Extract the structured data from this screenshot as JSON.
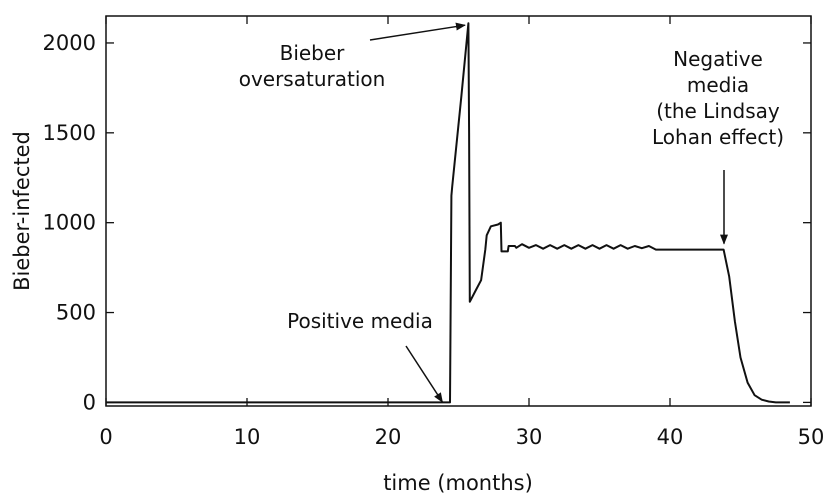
{
  "chart_data": {
    "type": "line",
    "title": "",
    "xlabel": "time (months)",
    "ylabel": "Bieber-infected",
    "xlim": [
      0,
      50
    ],
    "ylim": [
      -20,
      2150
    ],
    "xticks": [
      0,
      10,
      20,
      30,
      40,
      50
    ],
    "yticks": [
      0,
      500,
      1000,
      1500,
      2000
    ],
    "grid": false,
    "legend": "none",
    "line_color": "#111111",
    "series": [
      {
        "x": [
          0,
          23.8,
          24.4,
          24.5,
          24.55,
          25.2,
          25.7,
          25.75,
          25.8,
          26.2,
          26.6,
          26.9,
          27.0,
          27.3,
          27.8,
          28.0,
          28.05,
          28.5,
          28.55,
          29.0,
          29.1,
          29.5,
          30.0,
          30.5,
          31.0,
          31.5,
          32.0,
          32.5,
          33.0,
          33.5,
          34.0,
          34.5,
          35.0,
          35.5,
          36.0,
          36.5,
          37.0,
          37.5,
          38.0,
          38.5,
          39.0,
          40.0,
          41.0,
          42.0,
          43.0,
          43.8,
          44.2,
          44.6,
          45.0,
          45.5,
          46.0,
          46.5,
          47.0,
          47.5,
          48.0,
          48.5
        ],
        "y": [
          0,
          0,
          0,
          1150,
          1200,
          1700,
          2110,
          1500,
          560,
          620,
          680,
          850,
          930,
          980,
          990,
          1000,
          840,
          840,
          870,
          870,
          860,
          880,
          860,
          875,
          855,
          875,
          855,
          875,
          855,
          875,
          855,
          875,
          855,
          875,
          855,
          875,
          855,
          870,
          858,
          870,
          850,
          850,
          850,
          850,
          850,
          850,
          700,
          450,
          250,
          110,
          40,
          15,
          5,
          0,
          0,
          0
        ]
      }
    ],
    "annotations": [
      {
        "lines": [
          "Bieber",
          "oversaturation"
        ],
        "x": 25.7,
        "y": 2110
      },
      {
        "lines": [
          "Negative",
          "media",
          "(the Lindsay",
          "Lohan effect)"
        ],
        "x": 44.0,
        "y": 880
      },
      {
        "lines": [
          "Positive media"
        ],
        "x": 24.0,
        "y": 0
      }
    ]
  }
}
